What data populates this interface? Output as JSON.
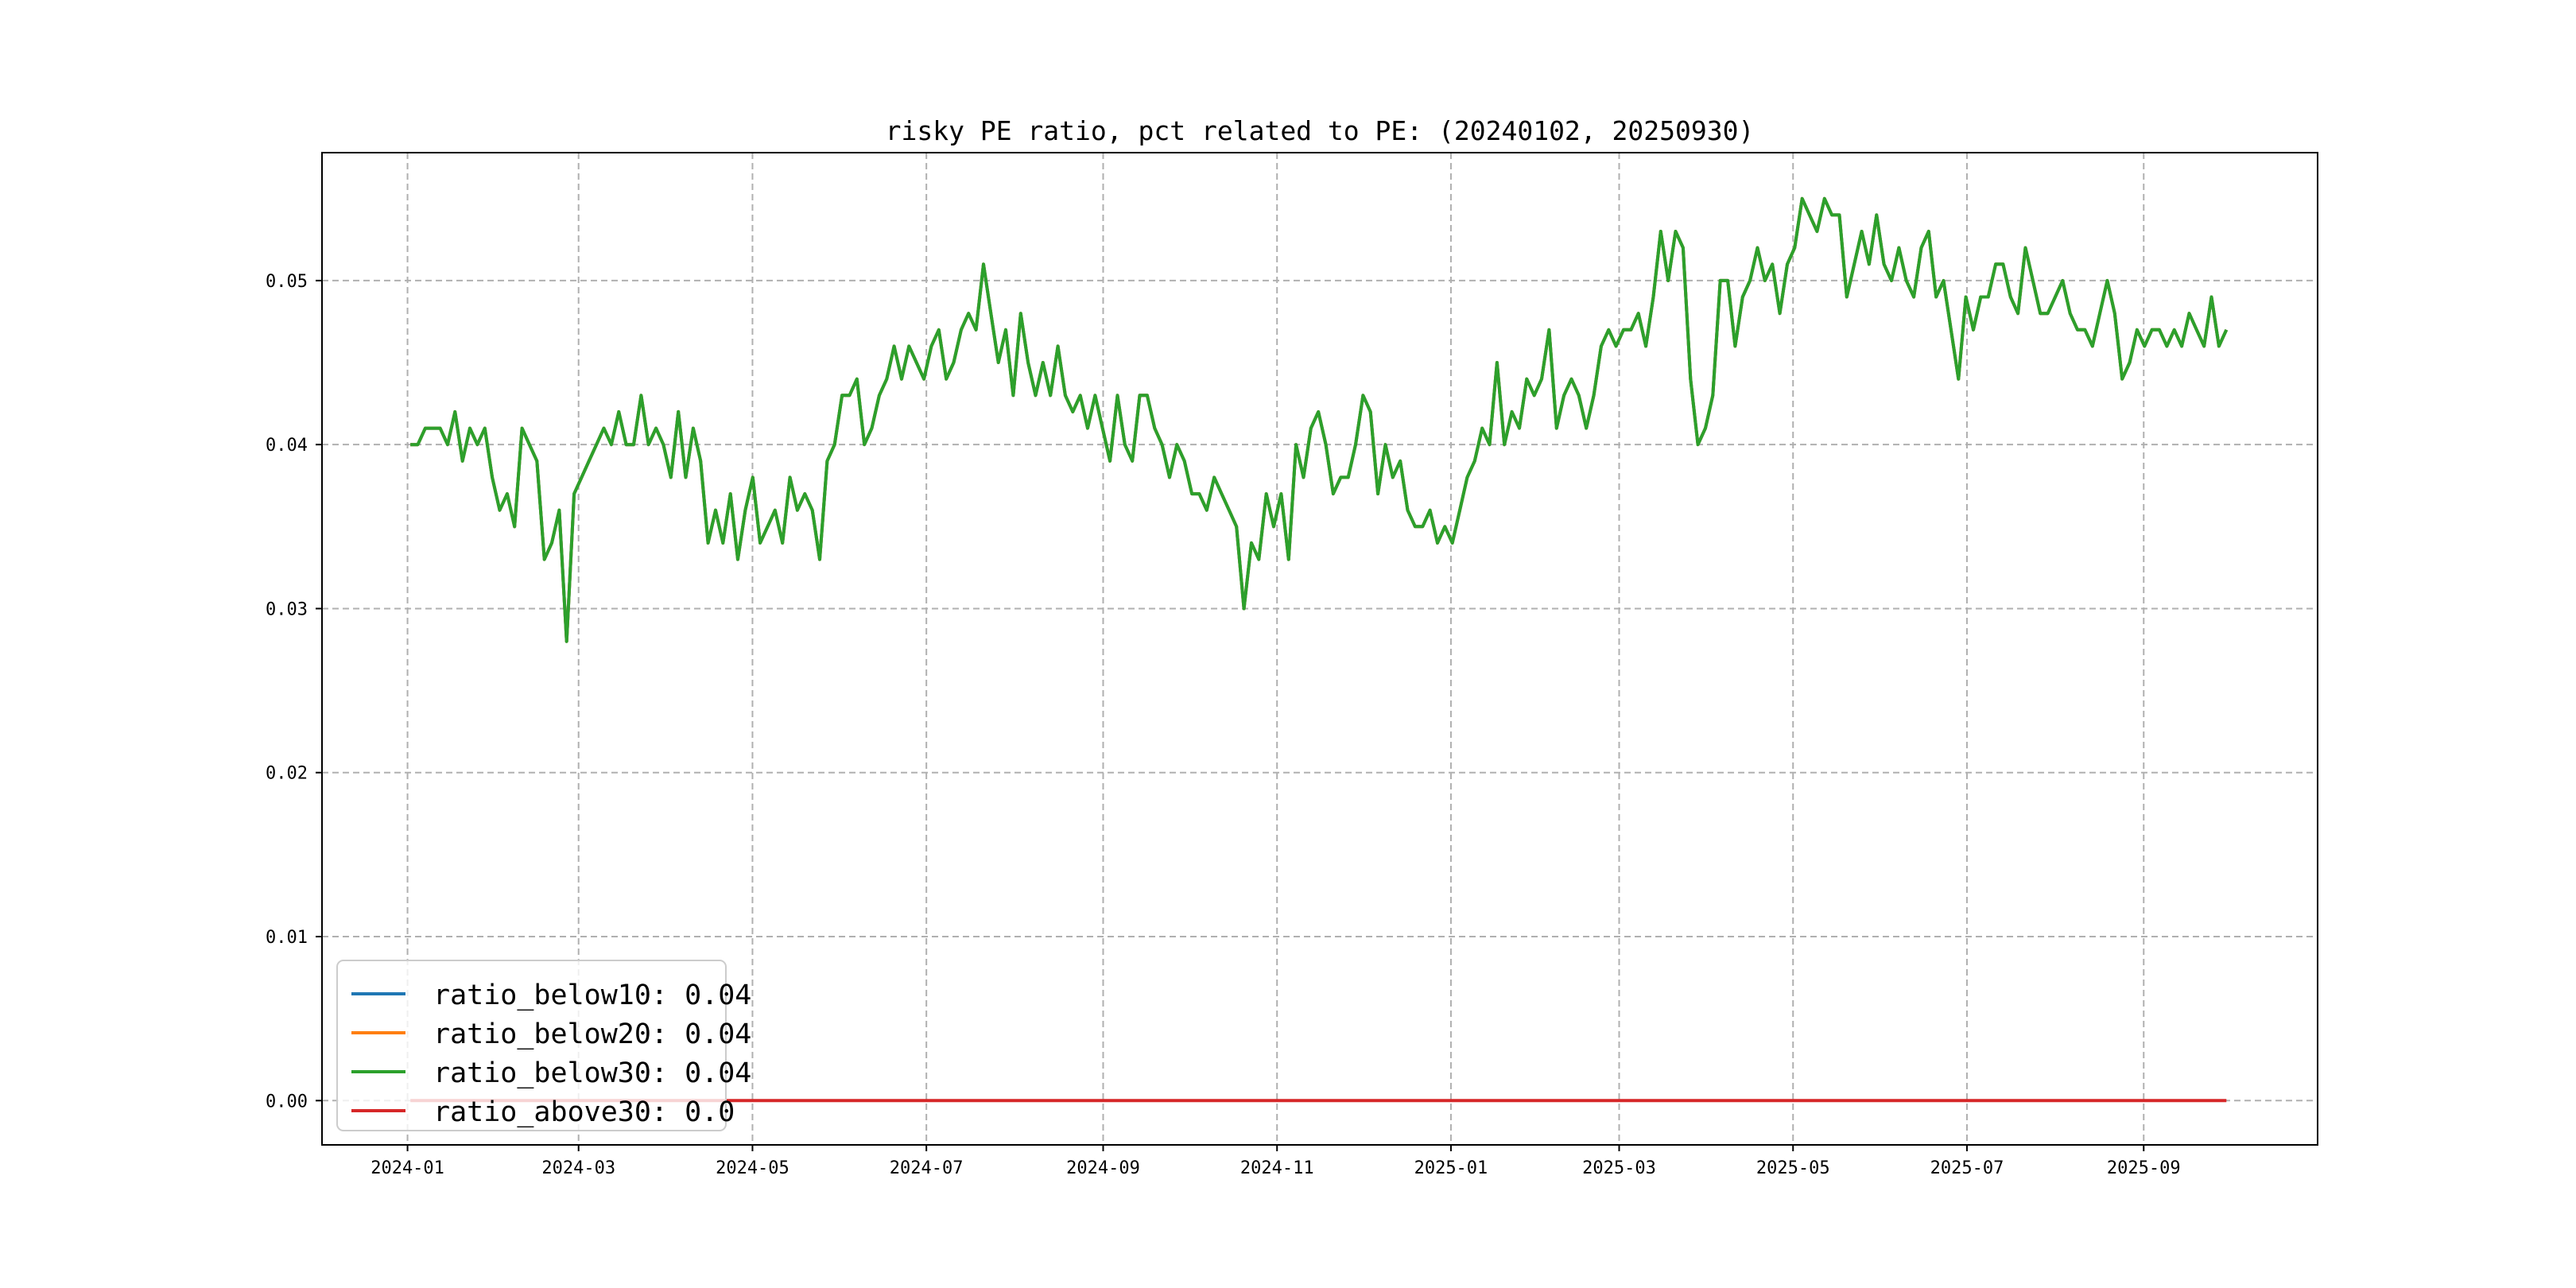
{
  "chart_data": {
    "type": "line",
    "title": "risky PE ratio, pct related to PE: (20240102, 20250930)",
    "xlabel": "",
    "ylabel": "",
    "x_start": "2024-01-02",
    "x_end": "2025-09-30",
    "xlim": [
      "2023-12-02",
      "2025-11-01"
    ],
    "ylim": [
      -0.0027,
      0.0578
    ],
    "grid": true,
    "legend_position": "lower-left",
    "x_ticks": [
      "2024-01",
      "2024-03",
      "2024-05",
      "2024-07",
      "2024-09",
      "2024-11",
      "2025-01",
      "2025-03",
      "2025-05",
      "2025-07",
      "2025-09"
    ],
    "y_ticks": [
      "0.00",
      "0.01",
      "0.02",
      "0.03",
      "0.04",
      "0.05"
    ],
    "shared_values": {
      "ratio_below": [
        0.04,
        0.04,
        0.041,
        0.041,
        0.041,
        0.04,
        0.042,
        0.039,
        0.041,
        0.04,
        0.041,
        0.038,
        0.036,
        0.037,
        0.035,
        0.041,
        0.04,
        0.039,
        0.033,
        0.034,
        0.036,
        0.028,
        0.037,
        0.038,
        0.039,
        0.04,
        0.041,
        0.04,
        0.042,
        0.04,
        0.04,
        0.043,
        0.04,
        0.041,
        0.04,
        0.038,
        0.042,
        0.038,
        0.041,
        0.039,
        0.034,
        0.036,
        0.034,
        0.037,
        0.033,
        0.036,
        0.038,
        0.034,
        0.035,
        0.036,
        0.034,
        0.038,
        0.036,
        0.037,
        0.036,
        0.033,
        0.039,
        0.04,
        0.043,
        0.043,
        0.044,
        0.04,
        0.041,
        0.043,
        0.044,
        0.046,
        0.044,
        0.046,
        0.045,
        0.044,
        0.046,
        0.047,
        0.044,
        0.045,
        0.047,
        0.048,
        0.047,
        0.051,
        0.048,
        0.045,
        0.047,
        0.043,
        0.048,
        0.045,
        0.043,
        0.045,
        0.043,
        0.046,
        0.043,
        0.042,
        0.043,
        0.041,
        0.043,
        0.041,
        0.039,
        0.043,
        0.04,
        0.039,
        0.043,
        0.043,
        0.041,
        0.04,
        0.038,
        0.04,
        0.039,
        0.037,
        0.037,
        0.036,
        0.038,
        0.037,
        0.036,
        0.035,
        0.03,
        0.034,
        0.033,
        0.037,
        0.035,
        0.037,
        0.033,
        0.04,
        0.038,
        0.041,
        0.042,
        0.04,
        0.037,
        0.038,
        0.038,
        0.04,
        0.043,
        0.042,
        0.037,
        0.04,
        0.038,
        0.039,
        0.036,
        0.035,
        0.035,
        0.036,
        0.034,
        0.035,
        0.034,
        0.036,
        0.038,
        0.039,
        0.041,
        0.04,
        0.045,
        0.04,
        0.042,
        0.041,
        0.044,
        0.043,
        0.044,
        0.047,
        0.041,
        0.043,
        0.044,
        0.043,
        0.041,
        0.043,
        0.046,
        0.047,
        0.046,
        0.047,
        0.047,
        0.048,
        0.046,
        0.049,
        0.053,
        0.05,
        0.053,
        0.052,
        0.044,
        0.04,
        0.041,
        0.043,
        0.05,
        0.05,
        0.046,
        0.049,
        0.05,
        0.052,
        0.05,
        0.051,
        0.048,
        0.051,
        0.052,
        0.055,
        0.054,
        0.053,
        0.055,
        0.054,
        0.054,
        0.049,
        0.051,
        0.053,
        0.051,
        0.054,
        0.051,
        0.05,
        0.052,
        0.05,
        0.049,
        0.052,
        0.053,
        0.049,
        0.05,
        0.047,
        0.044,
        0.049,
        0.047,
        0.049,
        0.049,
        0.051,
        0.051,
        0.049,
        0.048,
        0.052,
        0.05,
        0.048,
        0.048,
        0.049,
        0.05,
        0.048,
        0.047,
        0.047,
        0.046,
        0.048,
        0.05,
        0.048,
        0.044,
        0.045,
        0.047,
        0.046,
        0.047,
        0.047,
        0.046,
        0.047,
        0.046,
        0.048,
        0.047,
        0.046,
        0.049,
        0.046,
        0.047
      ],
      "zero": 0.0
    },
    "series": [
      {
        "name": "ratio_below10",
        "legend_label": "ratio_below10: 0.04",
        "color": "#1f77b4",
        "values_ref": "ratio_below"
      },
      {
        "name": "ratio_below20",
        "legend_label": "ratio_below20: 0.04",
        "color": "#ff7f0e",
        "values_ref": "ratio_below"
      },
      {
        "name": "ratio_below30",
        "legend_label": "ratio_below30: 0.04",
        "color": "#2ca02c",
        "values_ref": "ratio_below"
      },
      {
        "name": "ratio_above30",
        "legend_label": "ratio_above30: 0.0",
        "color": "#d62728",
        "values_ref": "zero"
      }
    ]
  }
}
